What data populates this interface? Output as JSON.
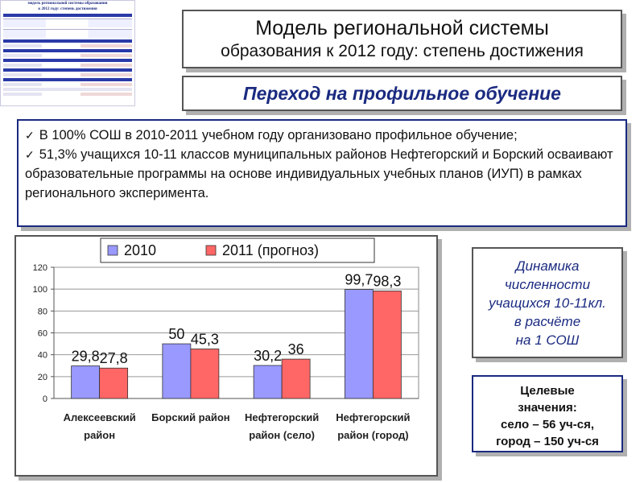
{
  "colors": {
    "accent": "#1a2a80",
    "series_2010": "#9999ff",
    "series_2011": "#ff6666"
  },
  "header": {
    "title_line1": "Модель региональной системы",
    "title_line2": "образования к 2012 году: степень достижения",
    "subtitle": "Переход на профильное обучение"
  },
  "thumbnail": {
    "title_line1": "модель региональной системы образования",
    "title_line2": "к 2012 году: степень достижения"
  },
  "info": {
    "check_icon": "checkmark-icon",
    "bullet1": "В 100% СОШ в 2010-2011 учебном году организовано профильное обучение;",
    "bullet2": "51,3% учащихся 10-11 классов муниципальных районов Нефтегорский и Борский осваивают образовательные программы на основе индивидуальных учебных планов (ИУП) в рамках регионального эксперимента."
  },
  "chart_data": {
    "type": "bar",
    "categories": [
      [
        "Алексеевский",
        "район"
      ],
      [
        "Борский район"
      ],
      [
        "Нефтегорский",
        "район (село)"
      ],
      [
        "Нефтегорский",
        "район (город)"
      ]
    ],
    "series": [
      {
        "name": "2010",
        "values": [
          29.8,
          50,
          30.2,
          99.7
        ],
        "labels": [
          "29,8",
          "50",
          "30,2",
          "99,7"
        ],
        "color": "#9999ff"
      },
      {
        "name": "2011 (прогноз)",
        "values": [
          27.8,
          45.3,
          36,
          98.3
        ],
        "labels": [
          "27,8",
          "45,3",
          "36",
          "98,3"
        ],
        "color": "#ff6666"
      }
    ],
    "ylim": [
      0,
      120
    ],
    "yticks": [
      0,
      20,
      40,
      60,
      80,
      100,
      120
    ],
    "grid": true,
    "legend": "top"
  },
  "side": {
    "dynamics": [
      "Динамика",
      "численности",
      "учащихся 10-11кл.",
      "в расчёте",
      "на 1 СОШ"
    ],
    "target": [
      "Целевые",
      "значения:",
      "село – 56 уч-ся,",
      "город – 150 уч-ся"
    ]
  }
}
